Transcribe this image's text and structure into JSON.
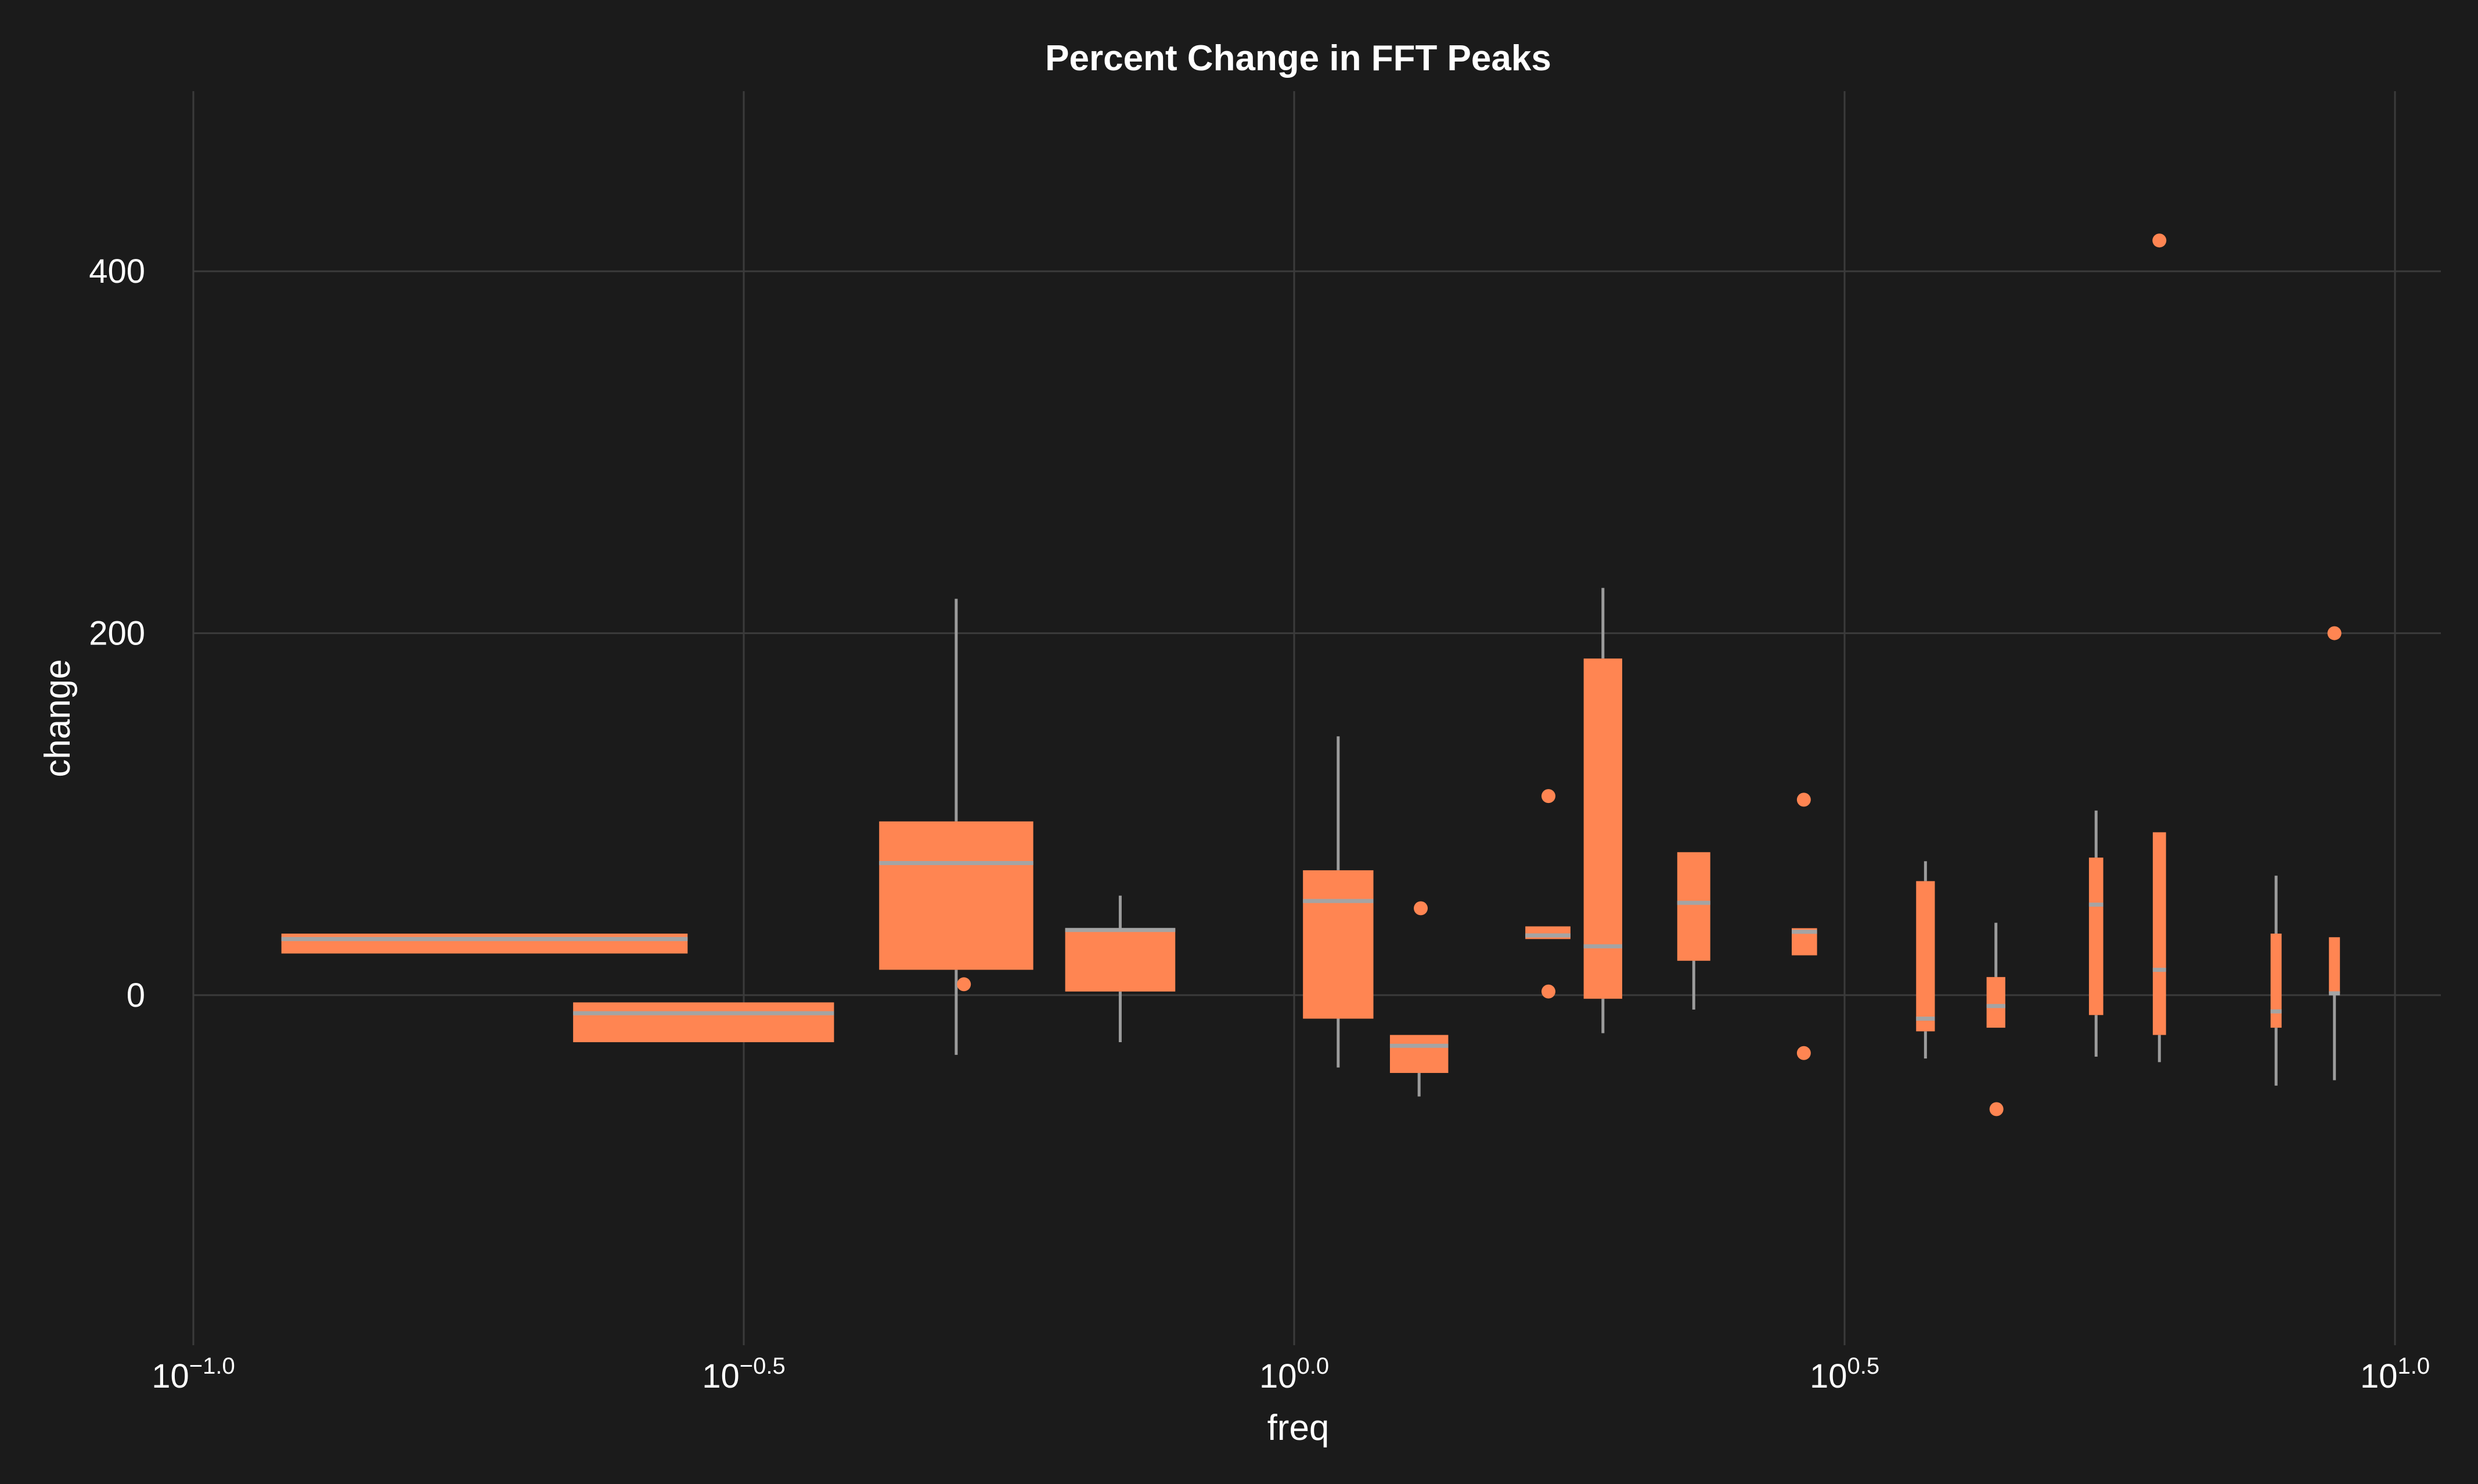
{
  "chart_data": {
    "type": "box",
    "title": "Percent Change in FFT Peaks",
    "xlabel": "freq",
    "ylabel": "change",
    "x_scale": "log",
    "xlim_log10": [
      -1.0,
      1.0
    ],
    "ylim": [
      -190,
      500
    ],
    "x_ticks": [
      {
        "base": "10",
        "exp": "−1.0",
        "value": -1.0
      },
      {
        "base": "10",
        "exp": "−0.5",
        "value": -0.5
      },
      {
        "base": "10",
        "exp": "0.0",
        "value": 0.0
      },
      {
        "base": "10",
        "exp": "0.5",
        "value": 0.5
      },
      {
        "base": "10",
        "exp": "1.0",
        "value": 1.0
      }
    ],
    "y_ticks": [
      {
        "label": "0",
        "value": 0
      },
      {
        "label": "200",
        "value": 200
      },
      {
        "label": "400",
        "value": 400
      }
    ],
    "grid": true,
    "colors": {
      "box": "#ff8552",
      "median": "#a4a4a4",
      "whisker": "#9c9c9c",
      "grid": "#3b3b3b",
      "background": "#1b1b1b"
    },
    "boxes": [
      {
        "x_low": -0.92,
        "x_high": -0.551,
        "q1": 23,
        "median": 31,
        "q3": 34,
        "whisker_low": 23,
        "whisker_high": 34
      },
      {
        "x_low": -0.655,
        "x_high": -0.418,
        "q1": -26,
        "median": -10,
        "q3": -4,
        "whisker_low": -26,
        "whisker_high": -4
      },
      {
        "x_low": -0.377,
        "x_high": -0.237,
        "q1": 14,
        "median": 73,
        "q3": 96,
        "whisker_low": -33,
        "whisker_high": 219
      },
      {
        "x_low": -0.208,
        "x_high": -0.108,
        "q1": 2,
        "median": 36,
        "q3": 37,
        "whisker_low": -26,
        "whisker_high": 55
      },
      {
        "x_low": 0.008,
        "x_high": 0.072,
        "q1": -13,
        "median": 52,
        "q3": 69,
        "whisker_low": -40,
        "whisker_high": 143
      },
      {
        "x_low": 0.087,
        "x_high": 0.14,
        "q1": -43,
        "median": -28,
        "q3": -22,
        "whisker_low": -56,
        "whisker_high": -22
      },
      {
        "x_low": 0.21,
        "x_high": 0.251,
        "q1": 31,
        "median": 33,
        "q3": 38,
        "whisker_low": 31,
        "whisker_high": 38
      },
      {
        "x_low": 0.263,
        "x_high": 0.298,
        "q1": -2,
        "median": 27,
        "q3": 186,
        "whisker_low": -21,
        "whisker_high": 225
      },
      {
        "x_low": 0.348,
        "x_high": 0.378,
        "q1": 19,
        "median": 51,
        "q3": 79,
        "whisker_low": -8,
        "whisker_high": 79
      },
      {
        "x_low": 0.452,
        "x_high": 0.475,
        "q1": 22,
        "median": 35,
        "q3": 37,
        "whisker_low": 22,
        "whisker_high": 37
      },
      {
        "x_low": 0.565,
        "x_high": 0.582,
        "q1": -20,
        "median": -13,
        "q3": 63,
        "whisker_low": -35,
        "whisker_high": 74
      },
      {
        "x_low": 0.629,
        "x_high": 0.646,
        "q1": -18,
        "median": -6,
        "q3": 10,
        "whisker_low": -18,
        "whisker_high": 40
      },
      {
        "x_low": 0.722,
        "x_high": 0.735,
        "q1": -11,
        "median": 50,
        "q3": 76,
        "whisker_low": -34,
        "whisker_high": 102
      },
      {
        "x_low": 0.78,
        "x_high": 0.792,
        "q1": -22,
        "median": 14,
        "q3": 90,
        "whisker_low": -37,
        "whisker_high": 90
      },
      {
        "x_low": 0.887,
        "x_high": 0.897,
        "q1": -18,
        "median": -9,
        "q3": 34,
        "whisker_low": -50,
        "whisker_high": 66
      },
      {
        "x_low": 0.94,
        "x_high": 0.95,
        "q1": 1,
        "median": 1,
        "q3": 32,
        "whisker_low": -47,
        "whisker_high": 32
      }
    ],
    "outliers": [
      {
        "x_log10": -0.3,
        "y": 6
      },
      {
        "x_log10": 0.115,
        "y": 48
      },
      {
        "x_log10": 0.231,
        "y": 110
      },
      {
        "x_log10": 0.231,
        "y": 2
      },
      {
        "x_log10": 0.463,
        "y": 108
      },
      {
        "x_log10": 0.463,
        "y": -32
      },
      {
        "x_log10": 0.638,
        "y": -63
      },
      {
        "x_log10": 0.786,
        "y": 417
      },
      {
        "x_log10": 0.945,
        "y": 200
      }
    ]
  }
}
